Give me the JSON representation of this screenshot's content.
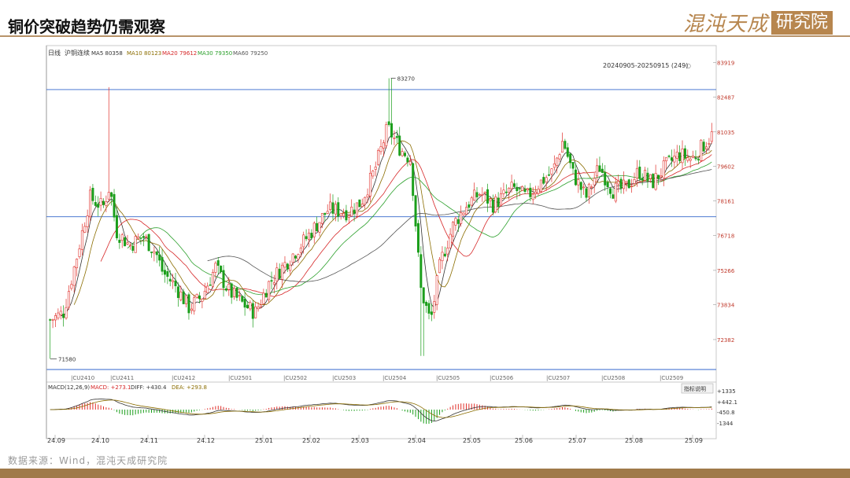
{
  "page": {
    "title": "铜价突破趋势仍需观察",
    "logo_text": "混沌天成",
    "logo_box": "研究院",
    "source": "数据来源：Wind，混沌天成研究院"
  },
  "chart_data": {
    "type": "candlestick",
    "header": {
      "period": "日线",
      "instrument": "沪铜连续",
      "ma": [
        {
          "name": "MA5",
          "value": "80358",
          "color": "#333333"
        },
        {
          "name": "MA10",
          "value": "80123",
          "color": "#8b6d00"
        },
        {
          "name": "MA20",
          "value": "79612",
          "color": "#d62728"
        },
        {
          "name": "MA30",
          "value": "79350",
          "color": "#2ca02c"
        },
        {
          "name": "MA60",
          "value": "79250",
          "color": "#555555"
        }
      ],
      "date_range": "20240905-20250915 (249)"
    },
    "ylim": [
      71200,
      84500
    ],
    "y_ticks": [
      "83919",
      "82487",
      "81035",
      "79602",
      "78161",
      "76718",
      "75266",
      "73834",
      "72382"
    ],
    "y_tick_values": [
      83919,
      82487,
      81035,
      79602,
      78161,
      76718,
      75266,
      73834,
      72382
    ],
    "h_lines": [
      82800,
      77500
    ],
    "annotations": [
      {
        "label": "83270",
        "value": 83270,
        "kind": "high"
      },
      {
        "label": "71580",
        "value": 71580,
        "kind": "low"
      }
    ],
    "contracts": [
      "CU2410",
      "CU2411",
      "CU2412",
      "CU2501",
      "CU2502",
      "CU2503",
      "CU2504",
      "CU2505",
      "CU2506",
      "CU2507",
      "CU2508",
      "CU2509"
    ],
    "x_ticks": [
      "24.09",
      "24.10",
      "24.11",
      "24.12",
      "25.01",
      "25.02",
      "25.03",
      "25.04",
      "25.05",
      "25.06",
      "25.07",
      "25.08",
      "25.09"
    ],
    "close_path": [
      [
        0,
        73200
      ],
      [
        0.02,
        73500
      ],
      [
        0.04,
        75800
      ],
      [
        0.06,
        78300
      ],
      [
        0.08,
        77900
      ],
      [
        0.09,
        78800
      ],
      [
        0.1,
        76900
      ],
      [
        0.12,
        76300
      ],
      [
        0.14,
        76700
      ],
      [
        0.16,
        76000
      ],
      [
        0.17,
        75200
      ],
      [
        0.19,
        74600
      ],
      [
        0.21,
        73700
      ],
      [
        0.23,
        74200
      ],
      [
        0.25,
        75400
      ],
      [
        0.27,
        74400
      ],
      [
        0.29,
        73900
      ],
      [
        0.31,
        73500
      ],
      [
        0.33,
        74700
      ],
      [
        0.36,
        75700
      ],
      [
        0.39,
        76700
      ],
      [
        0.42,
        77800
      ],
      [
        0.45,
        77700
      ],
      [
        0.47,
        78100
      ],
      [
        0.49,
        79400
      ],
      [
        0.51,
        81200
      ],
      [
        0.53,
        80300
      ],
      [
        0.545,
        79900
      ],
      [
        0.56,
        74500
      ],
      [
        0.575,
        73100
      ],
      [
        0.59,
        75600
      ],
      [
        0.61,
        77200
      ],
      [
        0.63,
        78000
      ],
      [
        0.65,
        78500
      ],
      [
        0.67,
        78000
      ],
      [
        0.7,
        78700
      ],
      [
        0.72,
        78300
      ],
      [
        0.74,
        78900
      ],
      [
        0.76,
        79400
      ],
      [
        0.775,
        80700
      ],
      [
        0.79,
        79300
      ],
      [
        0.81,
        78300
      ],
      [
        0.83,
        79600
      ],
      [
        0.85,
        78600
      ],
      [
        0.87,
        78700
      ],
      [
        0.89,
        79400
      ],
      [
        0.91,
        78900
      ],
      [
        0.93,
        79600
      ],
      [
        0.95,
        80100
      ],
      [
        0.97,
        79900
      ],
      [
        1.0,
        80900
      ]
    ],
    "macd": {
      "label": "MACD(12,26,9)",
      "macd": "MACD: +273.1",
      "diff": "DIFF: +430.4",
      "dea": "DEA: +293.8",
      "y_ticks": [
        "+1335",
        "+442.1",
        "-450.8",
        "-1344"
      ],
      "button": "指标说明"
    }
  }
}
